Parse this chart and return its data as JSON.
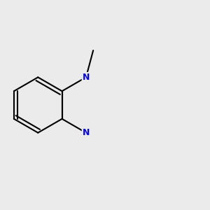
{
  "background_color": "#ebebeb",
  "bond_color": "#000000",
  "bond_width": 1.5,
  "atom_colors": {
    "N": "#0000ff",
    "S": "#ccaa00",
    "O": "#ff0000",
    "Cl": "#00bb00",
    "C": "#000000"
  },
  "font_size_atom": 9
}
